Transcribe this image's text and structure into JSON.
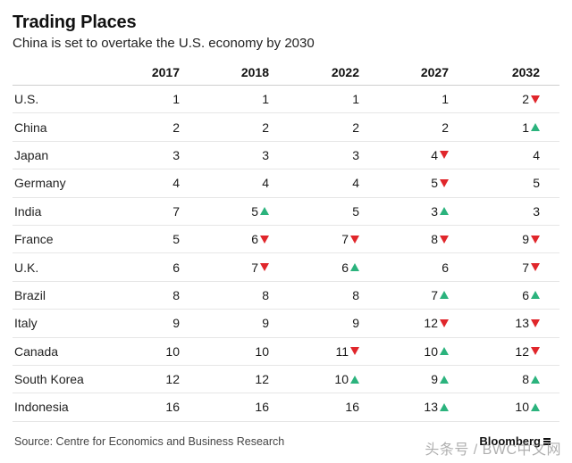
{
  "chart_data": {
    "type": "table",
    "title": "Trading Places",
    "subtitle": "China is set to overtake the U.S. economy by 2030",
    "columns": [
      "2017",
      "2018",
      "2022",
      "2027",
      "2032"
    ],
    "rows": [
      {
        "country": "U.S.",
        "values": [
          "1",
          "1",
          "1",
          "1",
          "2"
        ],
        "changes": [
          "",
          "",
          "",
          "",
          "down"
        ]
      },
      {
        "country": "China",
        "values": [
          "2",
          "2",
          "2",
          "2",
          "1"
        ],
        "changes": [
          "",
          "",
          "",
          "",
          "up"
        ]
      },
      {
        "country": "Japan",
        "values": [
          "3",
          "3",
          "3",
          "4",
          "4"
        ],
        "changes": [
          "",
          "",
          "",
          "down",
          ""
        ]
      },
      {
        "country": "Germany",
        "values": [
          "4",
          "4",
          "4",
          "5",
          "5"
        ],
        "changes": [
          "",
          "",
          "",
          "down",
          ""
        ]
      },
      {
        "country": "India",
        "values": [
          "7",
          "5",
          "5",
          "3",
          "3"
        ],
        "changes": [
          "",
          "up",
          "",
          "up",
          ""
        ]
      },
      {
        "country": "France",
        "values": [
          "5",
          "6",
          "7",
          "8",
          "9"
        ],
        "changes": [
          "",
          "down",
          "down",
          "down",
          "down"
        ]
      },
      {
        "country": "U.K.",
        "values": [
          "6",
          "7",
          "6",
          "6",
          "7"
        ],
        "changes": [
          "",
          "down",
          "up",
          "",
          "down"
        ]
      },
      {
        "country": "Brazil",
        "values": [
          "8",
          "8",
          "8",
          "7",
          "6"
        ],
        "changes": [
          "",
          "",
          "",
          "up",
          "up"
        ]
      },
      {
        "country": "Italy",
        "values": [
          "9",
          "9",
          "9",
          "12",
          "13"
        ],
        "changes": [
          "",
          "",
          "",
          "down",
          "down"
        ]
      },
      {
        "country": "Canada",
        "values": [
          "10",
          "10",
          "11",
          "10",
          "12"
        ],
        "changes": [
          "",
          "",
          "down",
          "up",
          "down"
        ]
      },
      {
        "country": "South Korea",
        "values": [
          "12",
          "12",
          "10",
          "9",
          "8"
        ],
        "changes": [
          "",
          "",
          "up",
          "up",
          "up"
        ]
      },
      {
        "country": "Indonesia",
        "values": [
          "16",
          "16",
          "16",
          "13",
          "10"
        ],
        "changes": [
          "",
          "",
          "",
          "up",
          "up"
        ]
      }
    ],
    "source": "Source: Centre for Economics and Business Research",
    "brand": "Bloomberg",
    "watermark": "头条号 / BWC中文网",
    "colors": {
      "up": "#2bb37d",
      "down": "#e0262b"
    }
  }
}
